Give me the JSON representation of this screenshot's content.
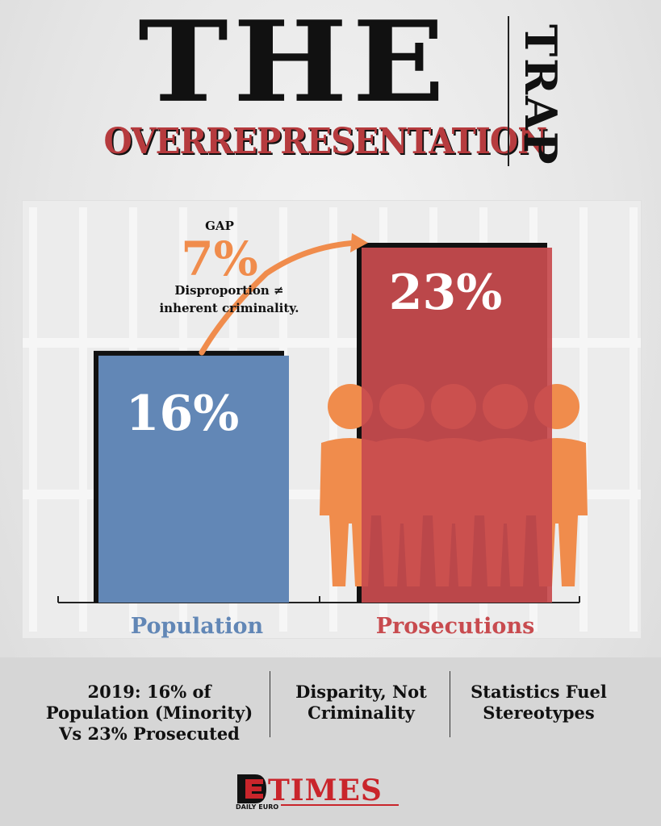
{
  "header": {
    "title_main": "THE",
    "title_sub": "OVERREPRESENTATION",
    "title_side": "TRAP"
  },
  "colors": {
    "population": "#6287b6",
    "prosecutions": "#c84b4f",
    "gap_accent": "#f08c4c",
    "figures": "#f08c4c"
  },
  "chart_data": {
    "type": "bar",
    "categories": [
      "Population",
      "Prosecutions"
    ],
    "values": [
      16,
      23
    ],
    "value_labels": [
      "16%",
      "23%"
    ],
    "unit": "%",
    "gap_annotation": {
      "label": "GAP",
      "value_text": "7%",
      "value": 7,
      "note_line1": "Disproportion ≠",
      "note_line2": "inherent criminality."
    },
    "icons": [
      "prison-bars-icon",
      "person-figures-icon",
      "curved-arrow-icon"
    ]
  },
  "footer": {
    "items": [
      {
        "lines": [
          "2019: 16% of",
          "Population (Minority)",
          "Vs 23% Prosecuted"
        ]
      },
      {
        "lines": [
          "Disparity, Not",
          "Criminality"
        ]
      },
      {
        "lines": [
          "Statistics Fuel",
          "Stereotypes"
        ]
      }
    ]
  },
  "logo": {
    "text": "TIMES",
    "small_text": "DAILY EURO"
  }
}
